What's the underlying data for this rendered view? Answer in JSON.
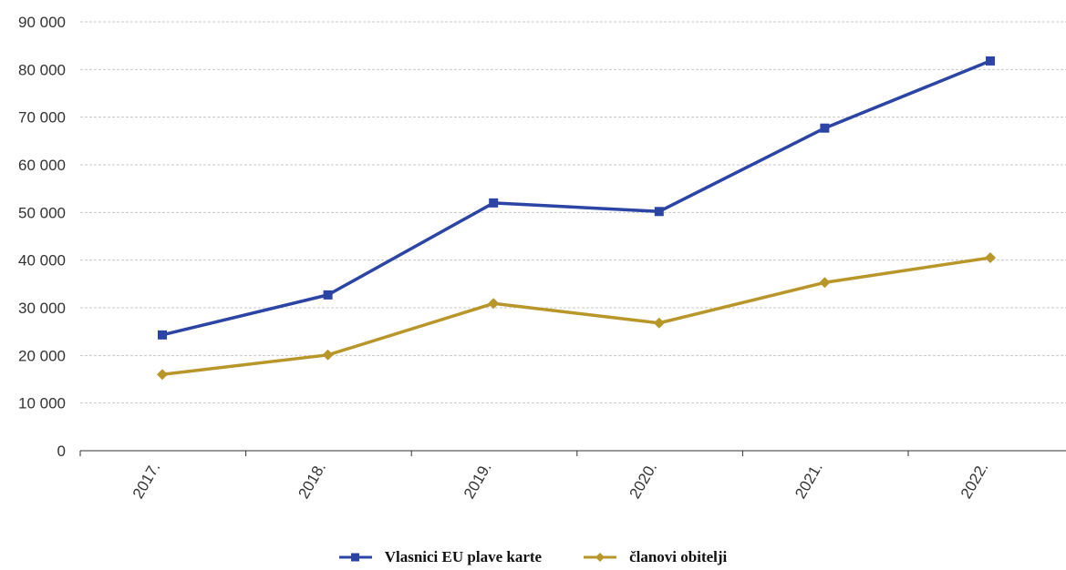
{
  "chart_data": {
    "type": "line",
    "categories": [
      "2017.",
      "2018.",
      "2019.",
      "2020.",
      "2021.",
      "2022."
    ],
    "series": [
      {
        "name": "Vlasnici EU plave karte",
        "values": [
          24300,
          32700,
          52000,
          50200,
          67700,
          81800
        ],
        "color": "#2c44a4",
        "marker": "square"
      },
      {
        "name": "članovi obitelji",
        "values": [
          16000,
          20100,
          30900,
          26800,
          35300,
          40500
        ],
        "color": "#b9962a",
        "marker": "diamond"
      }
    ],
    "y_ticks": [
      "0",
      "10 000",
      "20 000",
      "30 000",
      "40 000",
      "50 000",
      "60 000",
      "70 000",
      "80 000",
      "90 000"
    ],
    "ylim": [
      0,
      90000
    ],
    "grid": true,
    "legend_position": "bottom"
  }
}
